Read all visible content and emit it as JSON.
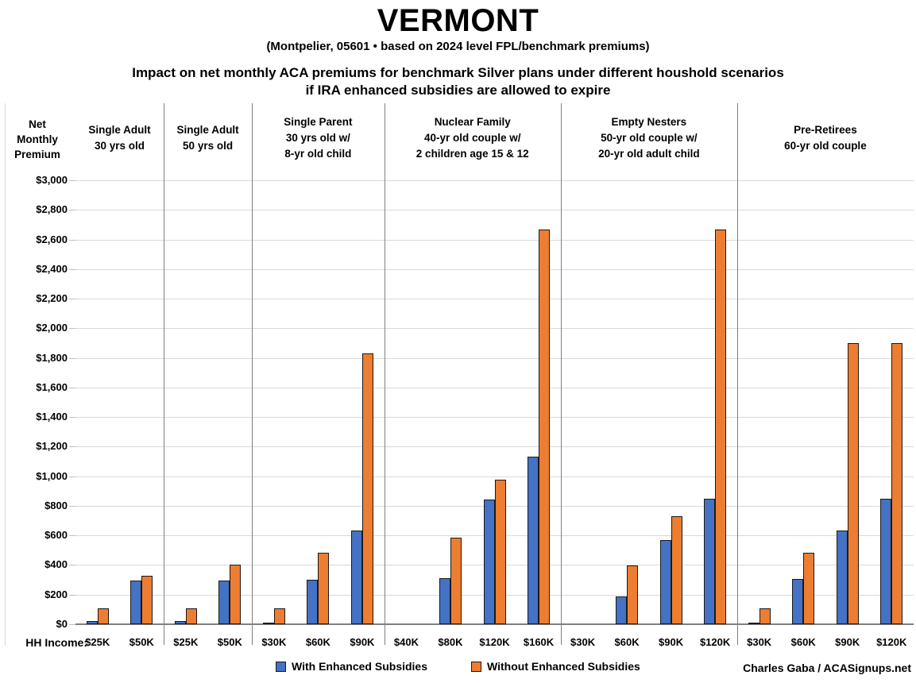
{
  "header": {
    "title": "VERMONT",
    "subtitle": "(Montpelier, 05601 • based on 2024 level FPL/benchmark premiums)",
    "heading_line1": "Impact on net monthly ACA premiums for benchmark Silver plans under different houshold scenarios",
    "heading_line2": "if IRA enhanced subsidies are allowed to expire"
  },
  "axis": {
    "y_title_lines": [
      "Net",
      "Monthly",
      "Premium"
    ],
    "x_prefix": "HH Income:"
  },
  "legend": {
    "with_label": "With Enhanced Subsidies",
    "without_label": "Without Enhanced Subsidies"
  },
  "footer": {
    "credit": "Charles Gaba / ACASignups.net"
  },
  "colors": {
    "with_enhanced": "#4472C4",
    "without_enhanced": "#ED7D31",
    "gridline": "#D9D9D9",
    "axis_line": "#808080",
    "separator": "#808080",
    "tick": "#BFBFBF",
    "bar_border": "#1A1A1A"
  },
  "chart_data": {
    "type": "bar",
    "title": "VERMONT",
    "subtitle": "(Montpelier, 05601 • based on 2024 level FPL/benchmark premiums)",
    "xlabel": "HH Income",
    "ylabel": "Net Monthly Premium",
    "ylim": [
      0,
      3000
    ],
    "ytick_step": 200,
    "ytick_format": "$#,##0",
    "grid": true,
    "legend_position": "bottom",
    "series": [
      "With Enhanced Subsidies",
      "Without Enhanced Subsidies"
    ],
    "panels": [
      {
        "title": "Single Adult 30 yrs old",
        "title_lines": [
          "Single Adult",
          "30 yrs old"
        ],
        "categories": [
          "$25K",
          "$50K"
        ],
        "with_enhanced": [
          20,
          295
        ],
        "without_enhanced": [
          105,
          325
        ]
      },
      {
        "title": "Single Adult 50 yrs old",
        "title_lines": [
          "Single Adult",
          "50 yrs old"
        ],
        "categories": [
          "$25K",
          "$50K"
        ],
        "with_enhanced": [
          20,
          295
        ],
        "without_enhanced": [
          105,
          405
        ]
      },
      {
        "title": "Single Parent 30 yrs old w/ 8-yr old child",
        "title_lines": [
          "Single Parent",
          "30 yrs old w/",
          "8-yr old child"
        ],
        "categories": [
          "$30K",
          "$60K",
          "$90K"
        ],
        "with_enhanced": [
          10,
          300,
          635
        ],
        "without_enhanced": [
          105,
          485,
          1830
        ]
      },
      {
        "title": "Nuclear Family 40-yr old couple w/ 2 children age 15 & 12",
        "title_lines": [
          "Nuclear Family",
          "40-yr old couple w/",
          "2 children age 15 & 12"
        ],
        "categories": [
          "$40K",
          "$80K",
          "$120K",
          "$160K"
        ],
        "with_enhanced": [
          0,
          310,
          845,
          1130
        ],
        "without_enhanced": [
          0,
          585,
          975,
          2665
        ]
      },
      {
        "title": "Empty Nesters 50-yr old couple w/ 20-yr old adult child",
        "title_lines": [
          "Empty Nesters",
          "50-yr old couple w/",
          "20-yr old adult child"
        ],
        "categories": [
          "$30K",
          "$60K",
          "$90K",
          "$120K"
        ],
        "with_enhanced": [
          0,
          190,
          570,
          850
        ],
        "without_enhanced": [
          0,
          395,
          730,
          2665
        ]
      },
      {
        "title": "Pre-Retirees 60-yr old couple",
        "title_lines": [
          "Pre-Retirees",
          "60-yr old couple"
        ],
        "categories": [
          "$30K",
          "$60K",
          "$90K",
          "$120K"
        ],
        "with_enhanced": [
          10,
          305,
          635,
          850
        ],
        "without_enhanced": [
          105,
          485,
          1900,
          1900
        ]
      }
    ]
  }
}
